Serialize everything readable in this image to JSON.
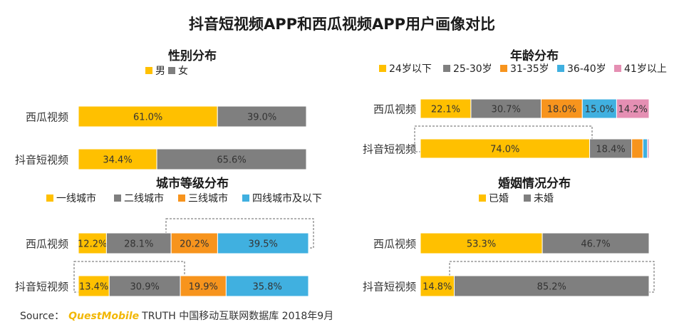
{
  "title": "抖音短视频APP和西瓜视频APP用户画像对比",
  "source": {
    "prefix": "Source：",
    "brand": "QuestMobile",
    "text": "TRUTH 中国移动互联网数据库 2018年9月"
  },
  "colors": {
    "yellow": "#FFC000",
    "gray": "#7F7F7F",
    "orange": "#F7941D",
    "blue": "#40B0E0",
    "pink": "#E58FB3"
  },
  "chart_data": [
    {
      "type": "bar",
      "stacked": true,
      "orientation": "horizontal",
      "title": "性别分布",
      "xlim": [
        0,
        100
      ],
      "categories": [
        "西瓜视频",
        "抖音短视频"
      ],
      "series": [
        {
          "name": "男",
          "color": "#FFC000",
          "values": [
            61.0,
            34.4
          ],
          "labels": [
            "61.0%",
            "34.4%"
          ]
        },
        {
          "name": "女",
          "color": "#7F7F7F",
          "values": [
            39.0,
            65.6
          ],
          "labels": [
            "39.0%",
            "65.6%"
          ]
        }
      ]
    },
    {
      "type": "bar",
      "stacked": true,
      "orientation": "horizontal",
      "title": "年龄分布",
      "xlim": [
        0,
        100
      ],
      "categories": [
        "西瓜视频",
        "抖音短视频"
      ],
      "series": [
        {
          "name": "24岁以下",
          "color": "#FFC000",
          "values": [
            22.1,
            74.0
          ],
          "labels": [
            "22.1%",
            "74.0%"
          ]
        },
        {
          "name": "25-30岁",
          "color": "#7F7F7F",
          "values": [
            30.7,
            18.4
          ],
          "labels": [
            "30.7%",
            "18.4%"
          ]
        },
        {
          "name": "31-35岁",
          "color": "#F7941D",
          "values": [
            18.0,
            4.9
          ],
          "labels": [
            "18.0%",
            ""
          ]
        },
        {
          "name": "36-40岁",
          "color": "#40B0E0",
          "values": [
            15.0,
            2.0
          ],
          "labels": [
            "15.0%",
            ""
          ]
        },
        {
          "name": "41岁以上",
          "color": "#E58FB3",
          "values": [
            14.2,
            0.7
          ],
          "labels": [
            "14.2%",
            ""
          ]
        }
      ]
    },
    {
      "type": "bar",
      "stacked": true,
      "orientation": "horizontal",
      "title": "城市等级分布",
      "xlim": [
        0,
        100
      ],
      "categories": [
        "西瓜视频",
        "抖音短视频"
      ],
      "series": [
        {
          "name": "一线城市",
          "color": "#FFC000",
          "values": [
            12.2,
            13.4
          ],
          "labels": [
            "12.2%",
            "13.4%"
          ]
        },
        {
          "name": "二线城市",
          "color": "#7F7F7F",
          "values": [
            28.1,
            30.9
          ],
          "labels": [
            "28.1%",
            "30.9%"
          ]
        },
        {
          "name": "三线城市",
          "color": "#F7941D",
          "values": [
            20.2,
            19.9
          ],
          "labels": [
            "20.2%",
            "19.9%"
          ]
        },
        {
          "name": "四线城市及以下",
          "color": "#40B0E0",
          "values": [
            39.5,
            35.8
          ],
          "labels": [
            "39.5%",
            "35.8%"
          ]
        }
      ]
    },
    {
      "type": "bar",
      "stacked": true,
      "orientation": "horizontal",
      "title": "婚姻情况分布",
      "xlim": [
        0,
        100
      ],
      "categories": [
        "西瓜视频",
        "抖音短视频"
      ],
      "series": [
        {
          "name": "已婚",
          "color": "#FFC000",
          "values": [
            53.3,
            14.8
          ],
          "labels": [
            "53.3%",
            "14.8%"
          ]
        },
        {
          "name": "未婚",
          "color": "#7F7F7F",
          "values": [
            46.7,
            85.2
          ],
          "labels": [
            "46.7%",
            "85.2%"
          ]
        }
      ]
    }
  ]
}
